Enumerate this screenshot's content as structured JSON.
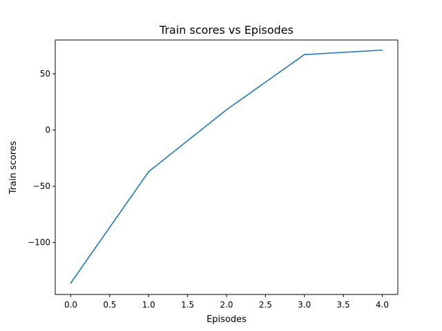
{
  "chart_data": {
    "type": "line",
    "title": "Train scores vs Episodes",
    "xlabel": "Episodes",
    "ylabel": "Train scores",
    "xlim": [
      -0.2,
      4.2
    ],
    "ylim": [
      -146.2,
      80.0
    ],
    "xticks": [
      0.0,
      0.5,
      1.0,
      1.5,
      2.0,
      2.5,
      3.0,
      3.5,
      4.0
    ],
    "xtick_labels": [
      "0.0",
      "0.5",
      "1.0",
      "1.5",
      "2.0",
      "2.5",
      "3.0",
      "3.5",
      "4.0"
    ],
    "yticks": [
      -100,
      -50,
      0,
      50
    ],
    "ytick_labels": [
      "−100",
      "−50",
      "0",
      "50"
    ],
    "grid": false,
    "series": [
      {
        "color": "#1f77b4",
        "x": [
          0,
          1,
          2,
          3,
          4
        ],
        "y": [
          -136,
          -37,
          18,
          67,
          71
        ]
      }
    ]
  }
}
